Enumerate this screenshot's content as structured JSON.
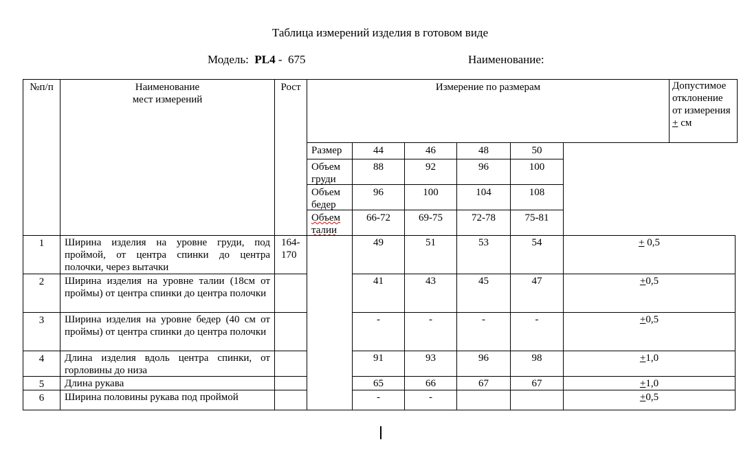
{
  "title": "Таблица измерений изделия в готовом виде",
  "model_label": "Модель:",
  "model_code": "PL4",
  "model_sep": " - ",
  "model_number": "675",
  "name_label": "Наименование:",
  "header": {
    "num": "№п/п",
    "name": "Наименование\nмест измерений",
    "rost": "Рост",
    "measure": "Измерение по размерам",
    "tolerance": "Допустимое отклонение от измерения",
    "tolerance_unit": "см",
    "tolerance_sign": "+"
  },
  "size_rows": [
    {
      "label": "Размер",
      "values": [
        "44",
        "46",
        "48",
        "50"
      ]
    },
    {
      "label": "Объем груди",
      "values": [
        "88",
        "92",
        "96",
        "100"
      ]
    },
    {
      "label": "Объем бедер",
      "values": [
        "96",
        "100",
        "104",
        "108"
      ]
    },
    {
      "label": "Объем талии",
      "values": [
        "66-72",
        "69-75",
        "72-78",
        "75-81"
      ],
      "spellcheck": true
    }
  ],
  "rows": [
    {
      "num": "1",
      "name": "Ширина изделия на уровне груди, под проймой, от центра спинки до центра полочки, через вытачки",
      "rost": "164-170",
      "values": [
        "49",
        "51",
        "53",
        "54"
      ],
      "tol_sign": "+",
      "tol": " 0,5"
    },
    {
      "num": "2",
      "name": "Ширина изделия на уровне талии (18см от проймы) от центра спинки до центра полочки",
      "rost": "",
      "values": [
        "41",
        "43",
        "45",
        "47"
      ],
      "tol_sign": "+",
      "tol": "0,5"
    },
    {
      "num": "3",
      "name": "Ширина изделия на уровне бедер (40 см от проймы) от центра спинки до центра полочки",
      "rost": "",
      "values": [
        "-",
        "-",
        "-",
        "-"
      ],
      "tol_sign": "+",
      "tol": "0,5"
    },
    {
      "num": "4",
      "name": "Длина изделия вдоль центра спинки, от горловины до низа",
      "rost": "",
      "values": [
        "91",
        "93",
        "96",
        "98"
      ],
      "tol_sign": "+",
      "tol": "1,0"
    },
    {
      "num": "5",
      "name": "Длина рукава",
      "rost": "",
      "values": [
        "65",
        "66",
        "67",
        "67"
      ],
      "tol_sign": "+",
      "tol": "1,0"
    },
    {
      "num": "6",
      "name": "Ширина половины рукава под проймой",
      "rost": "",
      "values": [
        "-",
        "-",
        "",
        ""
      ],
      "tol_sign": "+",
      "tol": "0,5"
    }
  ]
}
